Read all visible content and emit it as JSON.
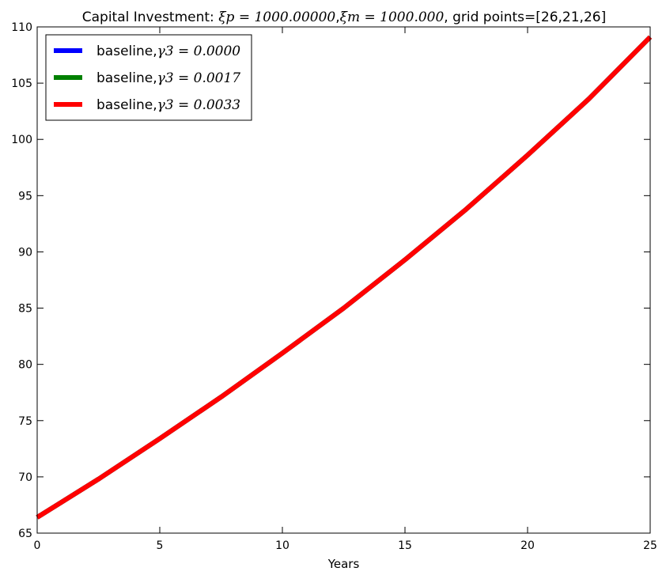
{
  "chart_data": {
    "type": "line",
    "title": {
      "prefix": "Capital Investment: ",
      "xi_p": "ξp = 1000.00000",
      "xi_m": "ξm = 1000.000",
      "suffix": ", grid points=[26,21,26]"
    },
    "xlabel": "Years",
    "ylabel": "",
    "xlim": [
      0,
      25
    ],
    "ylim": [
      65,
      110
    ],
    "xticks": [
      0,
      5,
      10,
      15,
      20,
      25
    ],
    "yticks": [
      65,
      70,
      75,
      80,
      85,
      90,
      95,
      100,
      105,
      110
    ],
    "grid": false,
    "legend_position": "top-left",
    "x": [
      0,
      2.5,
      5,
      7.5,
      10,
      12.5,
      15,
      17.5,
      20,
      22.5,
      25
    ],
    "series": [
      {
        "name": "baseline,γ3 = 0.0000",
        "legend_prefix": "baseline,",
        "legend_math": "γ3 = 0.0000",
        "color": "#0000ff",
        "values": [
          66.4,
          69.8,
          73.4,
          77.1,
          81.0,
          85.0,
          89.3,
          93.8,
          98.6,
          103.6,
          109.1
        ]
      },
      {
        "name": "baseline,γ3 = 0.0017",
        "legend_prefix": "baseline,",
        "legend_math": "γ3 = 0.0017",
        "color": "#008000",
        "values": [
          66.4,
          69.8,
          73.4,
          77.1,
          81.0,
          85.0,
          89.3,
          93.8,
          98.6,
          103.6,
          109.1
        ]
      },
      {
        "name": "baseline,γ3 = 0.0033",
        "legend_prefix": "baseline,",
        "legend_math": "γ3 = 0.0033",
        "color": "#ff0000",
        "values": [
          66.4,
          69.8,
          73.4,
          77.1,
          81.0,
          85.0,
          89.3,
          93.8,
          98.6,
          103.6,
          109.1
        ]
      }
    ]
  }
}
